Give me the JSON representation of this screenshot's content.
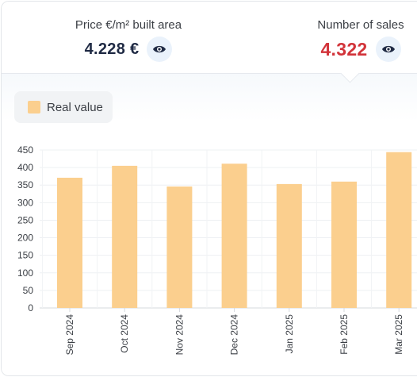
{
  "header": {
    "price_label": "Price €/m² built area",
    "price_value": "4.228 €",
    "sales_label": "Number of sales",
    "sales_value": "4.322",
    "accent_color": "#d2343a",
    "icon": "eye-icon"
  },
  "legend": {
    "label": "Real value",
    "color": "#fbcf8e"
  },
  "chart_data": {
    "type": "bar",
    "categories": [
      "Sep 2024",
      "Oct 2024",
      "Nov 2024",
      "Dec 2024",
      "Jan 2025",
      "Feb 2025",
      "Mar 2025"
    ],
    "series": [
      {
        "name": "Real value",
        "values": [
          371,
          405,
          346,
          411,
          353,
          360,
          444
        ],
        "color": "#fbcf8e"
      }
    ],
    "yticks": [
      0,
      50,
      100,
      150,
      200,
      250,
      300,
      350,
      400,
      450
    ],
    "ylim": [
      0,
      450
    ],
    "grid": true,
    "legend_position": "top-left"
  }
}
